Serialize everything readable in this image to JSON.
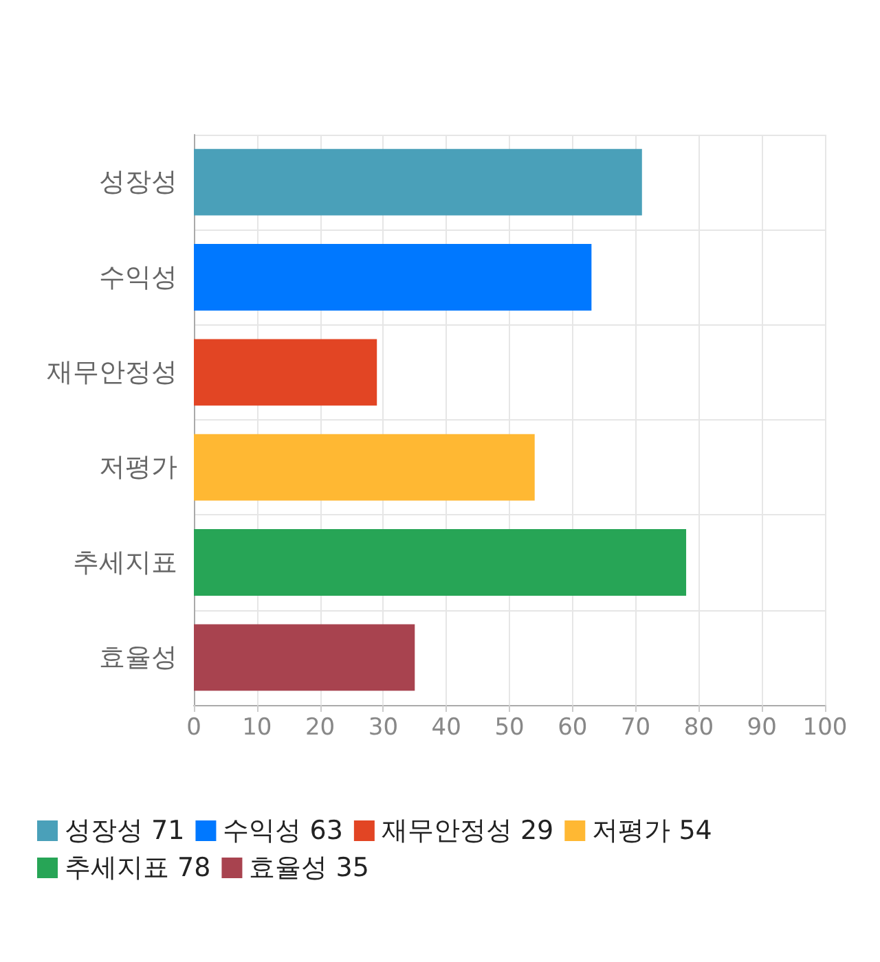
{
  "chart_data": {
    "type": "bar",
    "orientation": "horizontal",
    "stacked": true,
    "categories": [
      "성장성",
      "수익성",
      "재무안정성",
      "저평가",
      "추세지표",
      "효율성"
    ],
    "series": [
      {
        "name": "성장성 71",
        "color": "#4aa0b9",
        "values": [
          71,
          null,
          null,
          null,
          null,
          null
        ]
      },
      {
        "name": "수익성 63",
        "color": "#0078ff",
        "values": [
          null,
          63,
          null,
          null,
          null,
          null
        ]
      },
      {
        "name": "재무안정성 29",
        "color": "#e24524",
        "values": [
          null,
          null,
          29,
          null,
          null,
          null
        ]
      },
      {
        "name": "저평가 54",
        "color": "#ffb833",
        "values": [
          null,
          null,
          null,
          54,
          null,
          null
        ]
      },
      {
        "name": "추세지표 78",
        "color": "#27a556",
        "values": [
          null,
          null,
          null,
          null,
          78,
          null
        ]
      },
      {
        "name": "효율성 35",
        "color": "#a8434f",
        "values": [
          null,
          null,
          null,
          null,
          null,
          35
        ]
      }
    ],
    "xlim": [
      0,
      100
    ],
    "xticks": [
      0,
      10,
      20,
      30,
      40,
      50,
      60,
      70,
      80,
      90,
      100
    ],
    "grid": true,
    "legend": "bottom"
  }
}
